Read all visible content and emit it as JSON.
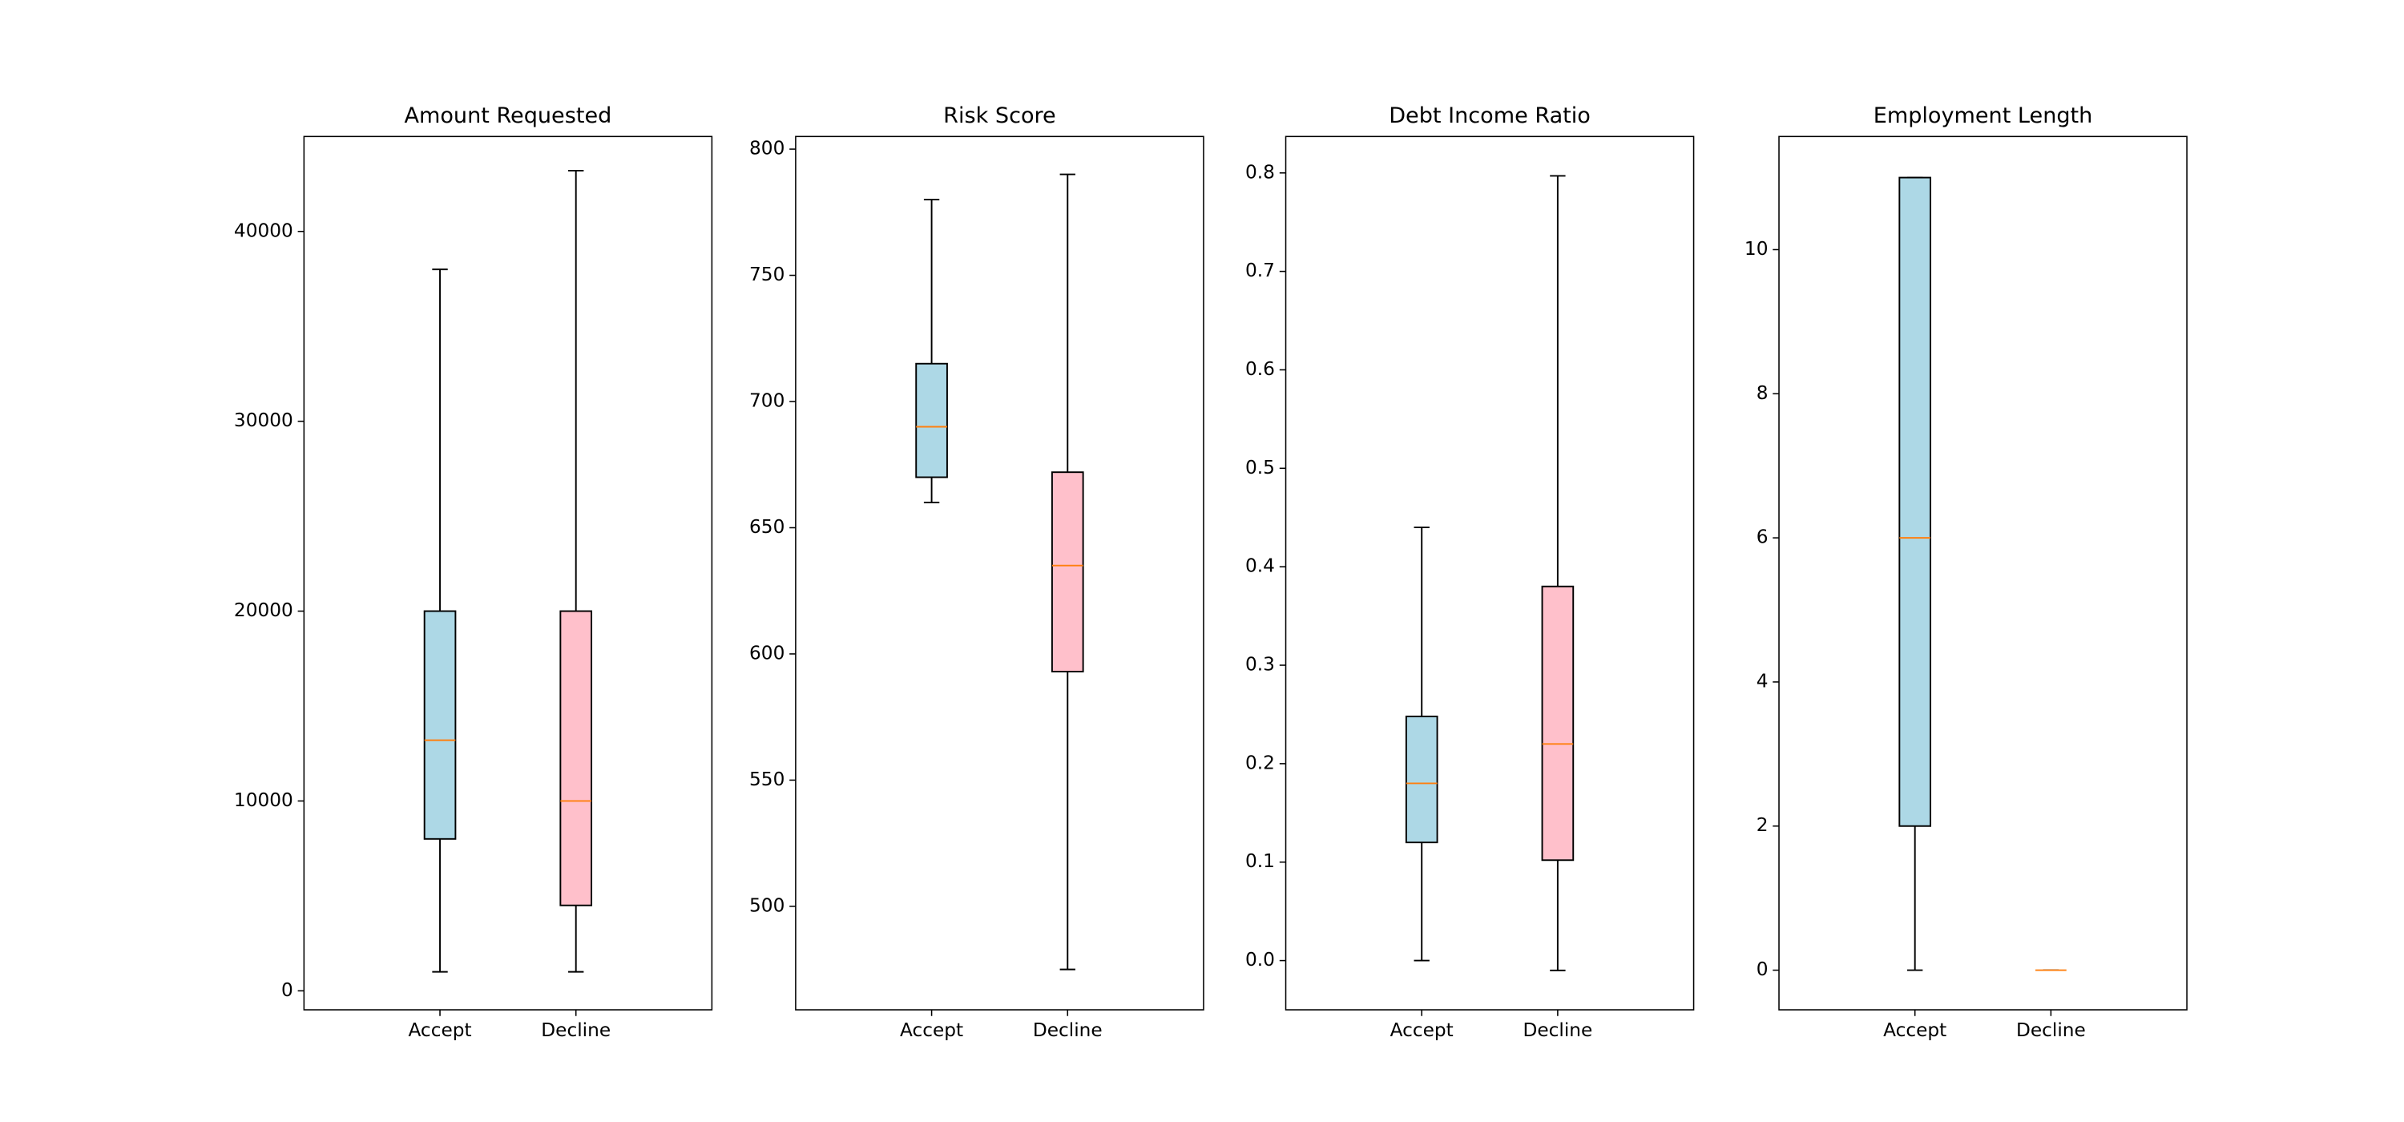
{
  "chart_data": [
    {
      "type": "box",
      "title": "Amount Requested",
      "categories": [
        "Accept",
        "Decline"
      ],
      "ylim": [
        -1000,
        45000
      ],
      "yticks": [
        0,
        10000,
        20000,
        30000,
        40000
      ],
      "ytick_labels": [
        "0",
        "10000",
        "20000",
        "30000",
        "40000"
      ],
      "boxes": [
        {
          "category": "Accept",
          "whisker_low": 1000,
          "q1": 8000,
          "median": 13200,
          "q3": 20000,
          "whisker_high": 38000,
          "color": "#add8e6"
        },
        {
          "category": "Decline",
          "whisker_low": 1000,
          "q1": 4500,
          "median": 10000,
          "q3": 20000,
          "whisker_high": 43200,
          "color": "#ffc0cb"
        }
      ]
    },
    {
      "type": "box",
      "title": "Risk Score",
      "categories": [
        "Accept",
        "Decline"
      ],
      "ylim": [
        459,
        805
      ],
      "yticks": [
        500,
        550,
        600,
        650,
        700,
        750,
        800
      ],
      "ytick_labels": [
        "500",
        "550",
        "600",
        "650",
        "700",
        "750",
        "800"
      ],
      "boxes": [
        {
          "category": "Accept",
          "whisker_low": 660,
          "q1": 670,
          "median": 690,
          "q3": 715,
          "whisker_high": 780,
          "color": "#add8e6"
        },
        {
          "category": "Decline",
          "whisker_low": 475,
          "q1": 593,
          "median": 635,
          "q3": 672,
          "whisker_high": 790,
          "color": "#ffc0cb"
        }
      ]
    },
    {
      "type": "box",
      "title": "Debt Income Ratio",
      "categories": [
        "Accept",
        "Decline"
      ],
      "ylim": [
        -0.05,
        0.837
      ],
      "yticks": [
        0.0,
        0.1,
        0.2,
        0.3,
        0.4,
        0.5,
        0.6,
        0.7,
        0.8
      ],
      "ytick_labels": [
        "0.0",
        "0.1",
        "0.2",
        "0.3",
        "0.4",
        "0.5",
        "0.6",
        "0.7",
        "0.8"
      ],
      "boxes": [
        {
          "category": "Accept",
          "whisker_low": 0.0,
          "q1": 0.12,
          "median": 0.18,
          "q3": 0.248,
          "whisker_high": 0.44,
          "color": "#add8e6"
        },
        {
          "category": "Decline",
          "whisker_low": -0.01,
          "q1": 0.102,
          "median": 0.22,
          "q3": 0.38,
          "whisker_high": 0.797,
          "color": "#ffc0cb"
        }
      ]
    },
    {
      "type": "box",
      "title": "Employment Length",
      "categories": [
        "Accept",
        "Decline"
      ],
      "ylim": [
        -0.55,
        11.57
      ],
      "yticks": [
        0,
        2,
        4,
        6,
        8,
        10
      ],
      "ytick_labels": [
        "0",
        "2",
        "4",
        "6",
        "8",
        "10"
      ],
      "boxes": [
        {
          "category": "Accept",
          "whisker_low": 0,
          "q1": 2,
          "median": 6,
          "q3": 11,
          "whisker_high": 11,
          "color": "#add8e6"
        },
        {
          "category": "Decline",
          "whisker_low": 0,
          "q1": 0,
          "median": 0,
          "q3": 0,
          "whisker_high": 0,
          "color": "#ffc0cb"
        }
      ]
    }
  ],
  "colors": {
    "median": "#ff7f0e",
    "edge": "#000000"
  }
}
